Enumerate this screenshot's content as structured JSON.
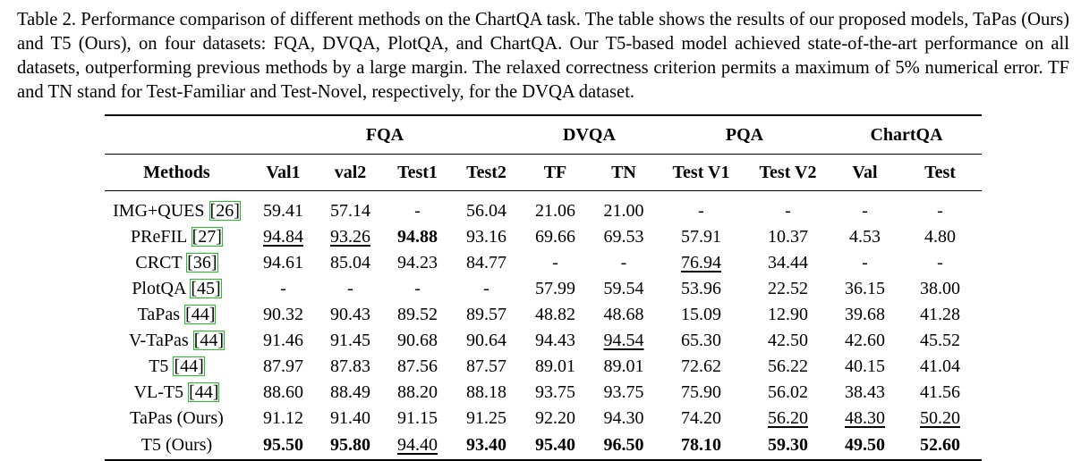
{
  "caption": {
    "label": "Table 2.",
    "text": "Performance comparison of different methods on the ChartQA task. The table shows the results of our proposed models, TaPas (Ours) and T5 (Ours), on four datasets: FQA, DVQA, PlotQA, and ChartQA. Our T5-based model achieved state-of-the-art performance on all datasets, outperforming previous methods by a large margin. The relaxed correctness criterion permits a maximum of 5% numerical error. TF and TN stand for Test-Familiar and Test-Novel, respectively, for the DVQA dataset."
  },
  "groups": [
    "FQA",
    "DVQA",
    "PQA",
    "ChartQA"
  ],
  "columns": [
    "Methods",
    "Val1",
    "val2",
    "Test1",
    "Test2",
    "TF",
    "TN",
    "Test V1",
    "Test V2",
    "Val",
    "Test"
  ],
  "rows": [
    {
      "method": "IMG+QUES",
      "cite": "26",
      "values": [
        "59.41",
        "57.14",
        "-",
        "56.04",
        "21.06",
        "21.00",
        "-",
        "-",
        "-",
        "-"
      ],
      "bold": [],
      "underline": []
    },
    {
      "method": "PReFIL",
      "cite": "27",
      "values": [
        "94.84",
        "93.26",
        "94.88",
        "93.16",
        "69.66",
        "69.53",
        "57.91",
        "10.37",
        "4.53",
        "4.80"
      ],
      "bold": [
        2
      ],
      "underline": [
        0,
        1
      ]
    },
    {
      "method": "CRCT",
      "cite": "36",
      "values": [
        "94.61",
        "85.04",
        "94.23",
        "84.77",
        "-",
        "-",
        "76.94",
        "34.44",
        "-",
        "-"
      ],
      "bold": [],
      "underline": [
        6
      ]
    },
    {
      "method": "PlotQA",
      "cite": "45",
      "values": [
        "-",
        "-",
        "-",
        "-",
        "57.99",
        "59.54",
        "53.96",
        "22.52",
        "36.15",
        "38.00"
      ],
      "bold": [],
      "underline": []
    },
    {
      "method": "TaPas",
      "cite": "44",
      "values": [
        "90.32",
        "90.43",
        "89.52",
        "89.57",
        "48.82",
        "48.68",
        "15.09",
        "12.90",
        "39.68",
        "41.28"
      ],
      "bold": [],
      "underline": []
    },
    {
      "method": "V-TaPas",
      "cite": "44",
      "values": [
        "91.46",
        "91.45",
        "90.68",
        "90.64",
        "94.43",
        "94.54",
        "65.30",
        "42.50",
        "42.60",
        "45.52"
      ],
      "bold": [],
      "underline": [
        5
      ]
    },
    {
      "method": "T5",
      "cite": "44",
      "values": [
        "87.97",
        "87.83",
        "87.56",
        "87.57",
        "89.01",
        "89.01",
        "72.62",
        "56.22",
        "40.15",
        "41.04"
      ],
      "bold": [],
      "underline": []
    },
    {
      "method": "VL-T5",
      "cite": "44",
      "values": [
        "88.60",
        "88.49",
        "88.20",
        "88.18",
        "93.75",
        "93.75",
        "75.90",
        "56.02",
        "38.43",
        "41.56"
      ],
      "bold": [],
      "underline": []
    },
    {
      "method": "TaPas (Ours)",
      "cite": "",
      "values": [
        "91.12",
        "91.40",
        "91.15",
        "91.25",
        "92.20",
        "94.30",
        "74.20",
        "56.20",
        "48.30",
        "50.20"
      ],
      "bold": [],
      "underline": [
        7,
        8,
        9
      ]
    },
    {
      "method": "T5 (Ours)",
      "cite": "",
      "values": [
        "95.50",
        "95.80",
        "94.40",
        "93.40",
        "95.40",
        "96.50",
        "78.10",
        "59.30",
        "49.50",
        "52.60"
      ],
      "bold": [
        0,
        1,
        3,
        4,
        5,
        6,
        7,
        8,
        9
      ],
      "underline": [
        2
      ]
    }
  ]
}
